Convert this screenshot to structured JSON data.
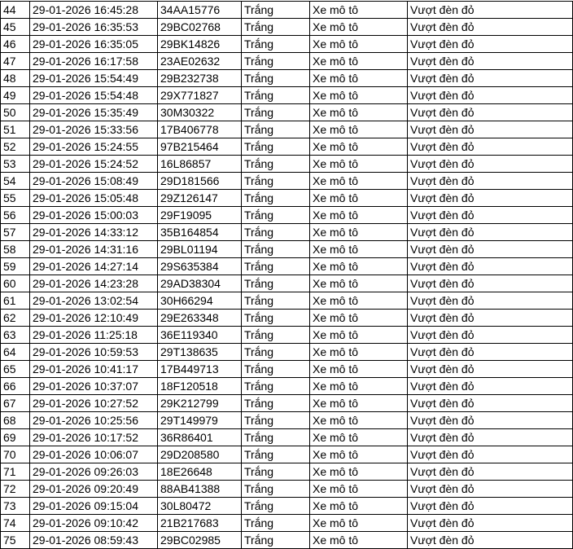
{
  "table": {
    "rows": [
      [
        "44",
        "29-01-2026 16:45:28",
        "34AA15776",
        "Trắng",
        "Xe mô tô",
        "Vượt đèn đỏ"
      ],
      [
        "45",
        "29-01-2026 16:35:53",
        "29BC02768",
        "Trắng",
        "Xe mô tô",
        "Vượt đèn đỏ"
      ],
      [
        "46",
        "29-01-2026 16:35:05",
        "29BK14826",
        "Trắng",
        "Xe mô tô",
        "Vượt đèn đỏ"
      ],
      [
        "47",
        "29-01-2026 16:17:58",
        "23AE02632",
        "Trắng",
        "Xe mô tô",
        "Vượt đèn đỏ"
      ],
      [
        "48",
        "29-01-2026 15:54:49",
        "29B232738",
        "Trắng",
        "Xe mô tô",
        "Vượt đèn đỏ"
      ],
      [
        "49",
        "29-01-2026 15:54:48",
        "29X771827",
        "Trắng",
        "Xe mô tô",
        "Vượt đèn đỏ"
      ],
      [
        "50",
        "29-01-2026 15:35:49",
        "30M30322",
        "Trắng",
        "Xe mô tô",
        "Vượt đèn đỏ"
      ],
      [
        "51",
        "29-01-2026 15:33:56",
        "17B406778",
        "Trắng",
        "Xe mô tô",
        "Vượt đèn đỏ"
      ],
      [
        "52",
        "29-01-2026 15:24:55",
        "97B215464",
        "Trắng",
        "Xe mô tô",
        "Vượt đèn đỏ"
      ],
      [
        "53",
        "29-01-2026 15:24:52",
        "16L86857",
        "Trắng",
        "Xe mô tô",
        "Vượt đèn đỏ"
      ],
      [
        "54",
        "29-01-2026 15:08:49",
        "29D181566",
        "Trắng",
        "Xe mô tô",
        "Vượt đèn đỏ"
      ],
      [
        "55",
        "29-01-2026 15:05:48",
        "29Z126147",
        "Trắng",
        "Xe mô tô",
        "Vượt đèn đỏ"
      ],
      [
        "56",
        "29-01-2026 15:00:03",
        "29F19095",
        "Trắng",
        "Xe mô tô",
        "Vượt đèn đỏ"
      ],
      [
        "57",
        "29-01-2026 14:33:12",
        "35B164854",
        "Trắng",
        "Xe mô tô",
        "Vượt đèn đỏ"
      ],
      [
        "58",
        "29-01-2026 14:31:16",
        "29BL01194",
        "Trắng",
        "Xe mô tô",
        "Vượt đèn đỏ"
      ],
      [
        "59",
        "29-01-2026 14:27:14",
        "29S635384",
        "Trắng",
        "Xe mô tô",
        "Vượt đèn đỏ"
      ],
      [
        "60",
        "29-01-2026 14:23:28",
        "29AD38304",
        "Trắng",
        "Xe mô tô",
        "Vượt đèn đỏ"
      ],
      [
        "61",
        "29-01-2026 13:02:54",
        "30H66294",
        "Trắng",
        "Xe mô tô",
        "Vượt đèn đỏ"
      ],
      [
        "62",
        "29-01-2026 12:10:49",
        "29E263348",
        "Trắng",
        "Xe mô tô",
        "Vượt đèn đỏ"
      ],
      [
        "63",
        "29-01-2026 11:25:18",
        "36E119340",
        "Trắng",
        "Xe mô tô",
        "Vượt đèn đỏ"
      ],
      [
        "64",
        "29-01-2026 10:59:53",
        "29T138635",
        "Trắng",
        "Xe mô tô",
        "Vượt đèn đỏ"
      ],
      [
        "65",
        "29-01-2026 10:41:17",
        "17B449713",
        "Trắng",
        "Xe mô tô",
        "Vượt đèn đỏ"
      ],
      [
        "66",
        "29-01-2026 10:37:07",
        "18F120518",
        "Trắng",
        "Xe mô tô",
        "Vượt đèn đỏ"
      ],
      [
        "67",
        "29-01-2026 10:27:52",
        "29K212799",
        "Trắng",
        "Xe mô tô",
        "Vượt đèn đỏ"
      ],
      [
        "68",
        "29-01-2026 10:25:56",
        "29T149979",
        "Trắng",
        "Xe mô tô",
        "Vượt đèn đỏ"
      ],
      [
        "69",
        "29-01-2026 10:17:52",
        "36R86401",
        "Trắng",
        "Xe mô tô",
        "Vượt đèn đỏ"
      ],
      [
        "70",
        "29-01-2026 10:06:07",
        "29D208580",
        "Trắng",
        "Xe mô tô",
        "Vượt đèn đỏ"
      ],
      [
        "71",
        "29-01-2026 09:26:03",
        "18E26648",
        "Trắng",
        "Xe mô tô",
        "Vượt đèn đỏ"
      ],
      [
        "72",
        "29-01-2026 09:20:49",
        "88AB41388",
        "Trắng",
        "Xe mô tô",
        "Vượt đèn đỏ"
      ],
      [
        "73",
        "29-01-2026 09:15:04",
        "30L80472",
        "Trắng",
        "Xe mô tô",
        "Vượt đèn đỏ"
      ],
      [
        "74",
        "29-01-2026 09:10:42",
        "21B217683",
        "Trắng",
        "Xe mô tô",
        "Vượt đèn đỏ"
      ],
      [
        "75",
        "29-01-2026 08:59:43",
        "29BC02985",
        "Trắng",
        "Xe mô tô",
        "Vượt đèn đỏ"
      ]
    ]
  }
}
